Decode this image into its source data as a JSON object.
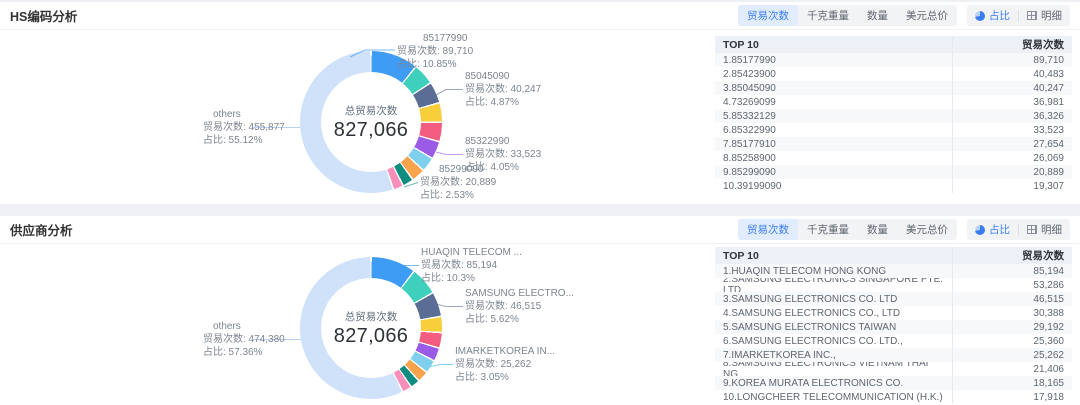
{
  "colors": {
    "accent_blue": "#3a7df0",
    "others_color": "#cfe2fa",
    "segment_palette": [
      "#3f9cf4",
      "#3ed0bd",
      "#5a6d95",
      "#f7cf3a",
      "#f25d7f",
      "#9a5ce6",
      "#7ed0ec",
      "#f9a34d",
      "#108d7f",
      "#f78fba"
    ]
  },
  "toolbar": {
    "metrics": [
      "贸易次数",
      "千克重量",
      "数量",
      "美元总价"
    ],
    "selected_metric": "贸易次数",
    "pie_label": "占比",
    "detail_label": "明细"
  },
  "sections": [
    {
      "title": "HS编码分析",
      "chart_data": {
        "type": "donut",
        "center_label": "总贸易次数",
        "center_value": "827,066",
        "total": 827066,
        "segments": [
          {
            "name": "85177990",
            "value": 89710
          },
          {
            "name": "85423900",
            "value": 40483
          },
          {
            "name": "85045090",
            "value": 40247
          },
          {
            "name": "73269099",
            "value": 36981
          },
          {
            "name": "85332129",
            "value": 36326
          },
          {
            "name": "85322990",
            "value": 33523
          },
          {
            "name": "85177910",
            "value": 27654
          },
          {
            "name": "85258900",
            "value": 26069
          },
          {
            "name": "85299090",
            "value": 20889
          },
          {
            "name": "39199090",
            "value": 19307
          },
          {
            "name": "others",
            "value": 455877
          }
        ],
        "callouts": [
          {
            "name": "85177990",
            "count_label": "贸易次数: 89,710",
            "pct_label": "占比: 10.85%"
          },
          {
            "name": "85045090",
            "count_label": "贸易次数: 40,247",
            "pct_label": "占比: 4.87%"
          },
          {
            "name": "85322990",
            "count_label": "贸易次数: 33,523",
            "pct_label": "占比: 4.05%"
          },
          {
            "name": "85299090",
            "count_label": "贸易次数: 20,889",
            "pct_label": "占比: 2.53%"
          }
        ],
        "others_callout": {
          "name": "others",
          "count_label": "贸易次数: 455,877",
          "pct_label": "占比: 55.12%"
        }
      },
      "table": {
        "header": [
          "TOP 10",
          "贸易次数"
        ],
        "rows": [
          [
            "1.85177990",
            "89,710"
          ],
          [
            "2.85423900",
            "40,483"
          ],
          [
            "3.85045090",
            "40,247"
          ],
          [
            "4.73269099",
            "36,981"
          ],
          [
            "5.85332129",
            "36,326"
          ],
          [
            "6.85322990",
            "33,523"
          ],
          [
            "7.85177910",
            "27,654"
          ],
          [
            "8.85258900",
            "26,069"
          ],
          [
            "9.85299090",
            "20,889"
          ],
          [
            "10.39199090",
            "19,307"
          ]
        ]
      }
    },
    {
      "title": "供应商分析",
      "chart_data": {
        "type": "donut",
        "center_label": "总贸易次数",
        "center_value": "827,066",
        "total": 827066,
        "segments": [
          {
            "name": "HUAQIN TELECOM HONG KONG",
            "value": 85194
          },
          {
            "name": "SAMSUNG ELECTRONICS SINGAPORE PTE. LTD",
            "value": 53286
          },
          {
            "name": "SAMSUNG ELECTRONICS CO. LTD",
            "value": 46515
          },
          {
            "name": "SAMSUNG ELECTRONICS CO., LTD",
            "value": 30388
          },
          {
            "name": "SAMSUNG ELECTRONICS TAIWAN",
            "value": 29192
          },
          {
            "name": "SAMSUNG ELECTRONICS CO. LTD.,",
            "value": 25360
          },
          {
            "name": "IMARKETKOREA INC.,",
            "value": 25262
          },
          {
            "name": "SAMSUNG ELECTRONICS VIETNAM THAI NG",
            "value": 21406
          },
          {
            "name": "KOREA MURATA ELECTRONICS CO.",
            "value": 18165
          },
          {
            "name": "LONGCHEER TELECOMMUNICATION (H.K.)",
            "value": 17918
          },
          {
            "name": "others",
            "value": 474380
          }
        ],
        "callouts": [
          {
            "name": "HUAQIN TELECOM ...",
            "count_label": "贸易次数: 85,194",
            "pct_label": "占比: 10.3%"
          },
          {
            "name": "SAMSUNG ELECTRO...",
            "count_label": "贸易次数: 46,515",
            "pct_label": "占比: 5.62%"
          },
          {
            "name": "IMARKETKOREA IN...",
            "count_label": "贸易次数: 25,262",
            "pct_label": "占比: 3.05%"
          }
        ],
        "others_callout": {
          "name": "others",
          "count_label": "贸易次数: 474,380",
          "pct_label": "占比: 57.36%"
        }
      },
      "table": {
        "header": [
          "TOP 10",
          "贸易次数"
        ],
        "rows": [
          [
            "1.HUAQIN TELECOM HONG KONG",
            "85,194"
          ],
          [
            "2.SAMSUNG ELECTRONICS SINGAPORE PTE. LTD",
            "53,286"
          ],
          [
            "3.SAMSUNG ELECTRONICS CO. LTD",
            "46,515"
          ],
          [
            "4.SAMSUNG ELECTRONICS CO., LTD",
            "30,388"
          ],
          [
            "5.SAMSUNG ELECTRONICS TAIWAN",
            "29,192"
          ],
          [
            "6.SAMSUNG ELECTRONICS CO. LTD.,",
            "25,360"
          ],
          [
            "7.IMARKETKOREA INC.,",
            "25,262"
          ],
          [
            "8.SAMSUNG ELECTRONICS VIETNAM THAI NG",
            "21,406"
          ],
          [
            "9.KOREA MURATA ELECTRONICS CO.",
            "18,165"
          ],
          [
            "10.LONGCHEER TELECOMMUNICATION (H.K.)",
            "17,918"
          ]
        ]
      }
    }
  ]
}
